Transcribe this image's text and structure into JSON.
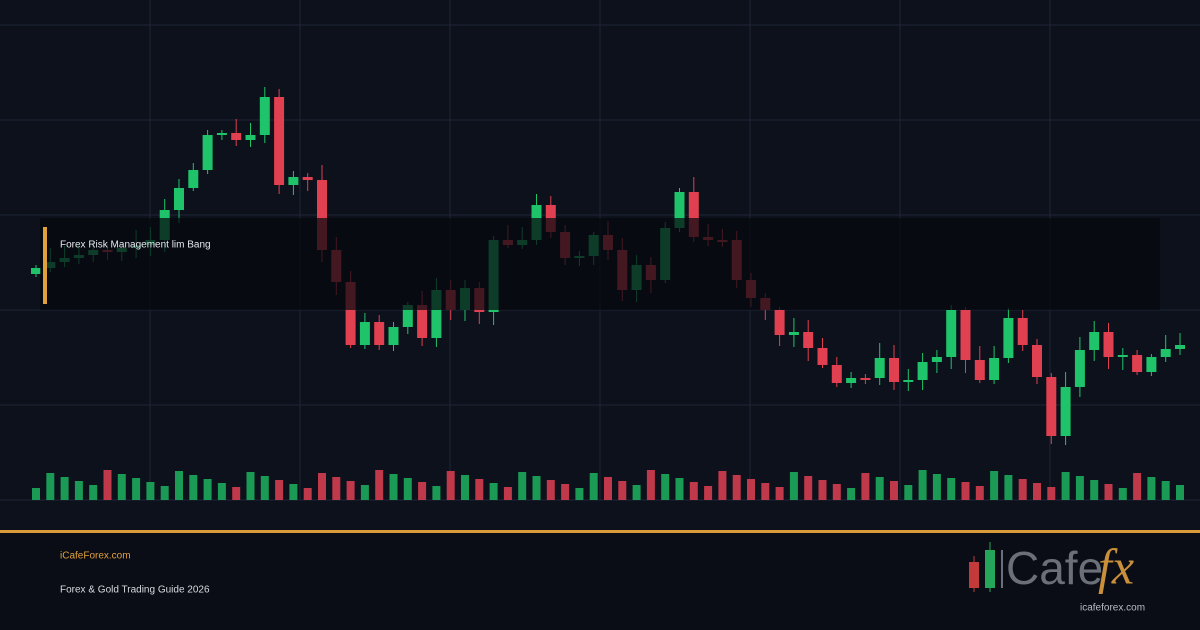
{
  "overlay": {
    "title": "Forex Risk Management lim Bang"
  },
  "footer": {
    "site": "iCafeForex.com",
    "subtitle": "Forex & Gold Trading Guide 2026"
  },
  "logo": {
    "word": "Cafe",
    "accent": "fx",
    "url": "icafeforex.com"
  }
}
